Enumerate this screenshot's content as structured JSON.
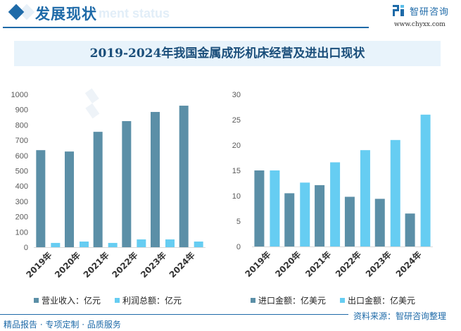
{
  "header": {
    "title": "发展现状",
    "ghost_text": "ment status",
    "brand_name": "智研咨询",
    "brand_url": "www.chyxx.com"
  },
  "main_title": "2019-2024年我国金属成形机床经营及进出口现状",
  "colors": {
    "dark": "#5b8fa7",
    "light": "#66cdf2",
    "accent": "#1e6aa8"
  },
  "chart_data": [
    {
      "type": "bar",
      "title": "",
      "categories": [
        "2019年",
        "2020年",
        "2021年",
        "2022年",
        "2023年",
        "2024年"
      ],
      "series": [
        {
          "name": "营业收入：亿元",
          "values": [
            635,
            626,
            755,
            825,
            885,
            926
          ]
        },
        {
          "name": "利润总额：亿元",
          "values": [
            28,
            37,
            28,
            51,
            51,
            37
          ]
        }
      ],
      "yticks": [
        "0",
        "100",
        "200",
        "300",
        "400",
        "500",
        "600",
        "700",
        "800",
        "900",
        "1000"
      ],
      "ylim": [
        0,
        1000
      ],
      "legend": "bottom",
      "grid": false
    },
    {
      "type": "bar",
      "title": "",
      "categories": [
        "2019年",
        "2020年",
        "2021年",
        "2022年",
        "2023年",
        "2024年"
      ],
      "series": [
        {
          "name": "进口金额：亿美元",
          "values": [
            15.0,
            10.5,
            12.1,
            9.8,
            9.4,
            6.5
          ]
        },
        {
          "name": "出口金额：亿美元",
          "values": [
            15.0,
            12.6,
            16.6,
            19.0,
            21.0,
            26.0
          ]
        }
      ],
      "yticks": [
        "0",
        "5",
        "10",
        "15",
        "20",
        "25",
        "30"
      ],
      "ylim": [
        0,
        30
      ],
      "legend": "bottom",
      "grid": false
    }
  ],
  "footer": {
    "left": "精品报告 · 专项定制 · 品质服务",
    "right": "资料来源：智研咨询整理"
  }
}
